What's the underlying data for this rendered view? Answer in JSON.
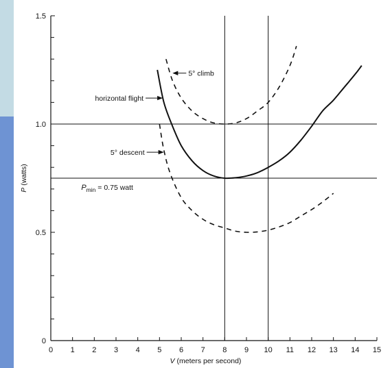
{
  "chart_data": {
    "type": "line",
    "xlabel_italic": "V",
    "xlabel_rest": " (meters per second)",
    "ylabel_italic": "P",
    "ylabel_rest": " (watts)",
    "xlim": [
      0,
      15
    ],
    "ylim": [
      0,
      1.5
    ],
    "x_ticks": [
      0,
      1,
      2,
      3,
      4,
      5,
      6,
      7,
      8,
      9,
      10,
      11,
      12,
      13,
      14,
      15
    ],
    "y_labeled_ticks": [
      {
        "value": 0,
        "label": "0"
      },
      {
        "value": 0.5,
        "label": "0.5"
      },
      {
        "value": 1.0,
        "label": "1.0"
      },
      {
        "value": 1.5,
        "label": "1.5"
      }
    ],
    "y_minor_ticks": [
      0.1,
      0.2,
      0.3,
      0.4,
      0.6,
      0.7,
      0.8,
      0.9,
      1.1,
      1.2,
      1.3,
      1.4
    ],
    "reference_lines": {
      "horizontal": [
        1.0,
        0.75
      ],
      "vertical": [
        8,
        10
      ]
    },
    "series": [
      {
        "name": "horizontal flight",
        "style": "solid",
        "points": [
          [
            4.9,
            1.25
          ],
          [
            5.2,
            1.1
          ],
          [
            5.6,
            0.99
          ],
          [
            6.0,
            0.9
          ],
          [
            6.5,
            0.83
          ],
          [
            7.0,
            0.785
          ],
          [
            7.5,
            0.76
          ],
          [
            8.0,
            0.75
          ],
          [
            8.5,
            0.752
          ],
          [
            9.0,
            0.76
          ],
          [
            9.5,
            0.775
          ],
          [
            10.0,
            0.8
          ],
          [
            10.5,
            0.83
          ],
          [
            11.0,
            0.87
          ],
          [
            11.5,
            0.925
          ],
          [
            12.0,
            0.99
          ],
          [
            12.5,
            1.06
          ],
          [
            13.0,
            1.11
          ],
          [
            13.5,
            1.17
          ],
          [
            14.0,
            1.23
          ],
          [
            14.3,
            1.27
          ]
        ]
      },
      {
        "name": "5° climb",
        "style": "dashed",
        "points": [
          [
            5.3,
            1.3
          ],
          [
            5.6,
            1.2
          ],
          [
            6.0,
            1.12
          ],
          [
            6.5,
            1.06
          ],
          [
            7.0,
            1.025
          ],
          [
            7.5,
            1.005
          ],
          [
            8.0,
            1.0
          ],
          [
            8.5,
            1.005
          ],
          [
            9.0,
            1.025
          ],
          [
            9.5,
            1.06
          ],
          [
            10.0,
            1.1
          ],
          [
            10.5,
            1.17
          ],
          [
            11.0,
            1.27
          ],
          [
            11.3,
            1.36
          ]
        ]
      },
      {
        "name": "5° descent",
        "style": "dashed",
        "points": [
          [
            5.0,
            1.0
          ],
          [
            5.2,
            0.88
          ],
          [
            5.5,
            0.77
          ],
          [
            6.0,
            0.66
          ],
          [
            6.5,
            0.6
          ],
          [
            7.0,
            0.56
          ],
          [
            7.5,
            0.535
          ],
          [
            8.0,
            0.52
          ],
          [
            8.5,
            0.505
          ],
          [
            9.0,
            0.5
          ],
          [
            9.5,
            0.502
          ],
          [
            10.0,
            0.51
          ],
          [
            10.5,
            0.525
          ],
          [
            11.0,
            0.545
          ],
          [
            11.5,
            0.575
          ],
          [
            12.0,
            0.605
          ],
          [
            12.5,
            0.64
          ],
          [
            13.0,
            0.68
          ]
        ]
      }
    ],
    "annotations": [
      {
        "id": "climb",
        "text": "5° climb",
        "arrow_to": [
          5.6,
          1.235
        ]
      },
      {
        "id": "horizontal",
        "text": "horizontal flight",
        "arrow_to": [
          5.15,
          1.12
        ]
      },
      {
        "id": "descent",
        "text": "5° descent",
        "arrow_to": [
          5.2,
          0.87
        ]
      },
      {
        "id": "pmin",
        "text_main": "P",
        "text_sub": "min",
        "text_rest": " = 0.75 watt"
      }
    ]
  }
}
